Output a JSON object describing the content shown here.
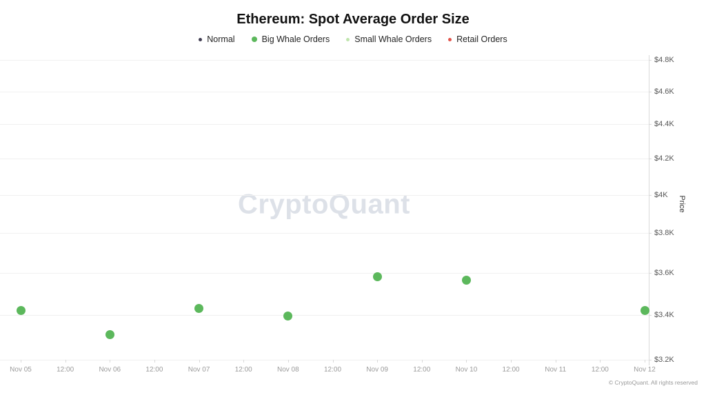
{
  "title": "Ethereum: Spot Average Order Size",
  "watermark": "CryptoQuant",
  "copyright": "© CryptoQuant. All rights reserved",
  "legend": [
    {
      "label": "Normal",
      "color": "#413d52"
    },
    {
      "label": "Big Whale Orders",
      "color": "#5cb85c"
    },
    {
      "label": "Small Whale Orders",
      "color": "#bfe5ad"
    },
    {
      "label": "Retail Orders",
      "color": "#e2534a"
    }
  ],
  "chart_data": {
    "type": "scatter",
    "title": "Ethereum: Spot Average Order Size",
    "xlabel": "",
    "ylabel": "Price",
    "y_scale": "log",
    "ylim": [
      3200,
      4800
    ],
    "grid": true,
    "legend_position": "top",
    "y_ticks": [
      {
        "value": 3200,
        "label": "$3.2K"
      },
      {
        "value": 3400,
        "label": "$3.4K"
      },
      {
        "value": 3600,
        "label": "$3.6K"
      },
      {
        "value": 3800,
        "label": "$3.8K"
      },
      {
        "value": 4000,
        "label": "$4K"
      },
      {
        "value": 4200,
        "label": "$4.2K"
      },
      {
        "value": 4400,
        "label": "$4.4K"
      },
      {
        "value": 4600,
        "label": "$4.6K"
      },
      {
        "value": 4800,
        "label": "$4.8K"
      }
    ],
    "x_ticks": [
      {
        "day": 0,
        "label": "Nov 05"
      },
      {
        "day": 0.5,
        "label": "12:00"
      },
      {
        "day": 1,
        "label": "Nov 06"
      },
      {
        "day": 1.5,
        "label": "12:00"
      },
      {
        "day": 2,
        "label": "Nov 07"
      },
      {
        "day": 2.5,
        "label": "12:00"
      },
      {
        "day": 3,
        "label": "Nov 08"
      },
      {
        "day": 3.5,
        "label": "12:00"
      },
      {
        "day": 4,
        "label": "Nov 09"
      },
      {
        "day": 4.5,
        "label": "12:00"
      },
      {
        "day": 5,
        "label": "Nov 10"
      },
      {
        "day": 5.5,
        "label": "12:00"
      },
      {
        "day": 6,
        "label": "Nov 11"
      },
      {
        "day": 6.5,
        "label": "12:00"
      },
      {
        "day": 7,
        "label": "Nov 12"
      }
    ],
    "xlim_days": [
      0,
      7
    ],
    "series": [
      {
        "name": "Big Whale Orders",
        "color": "#5cb85c",
        "points": [
          {
            "date": "Nov 05",
            "day": 0,
            "price": 3420
          },
          {
            "date": "Nov 06",
            "day": 1,
            "price": 3310
          },
          {
            "date": "Nov 07",
            "day": 2,
            "price": 3430
          },
          {
            "date": "Nov 08",
            "day": 3,
            "price": 3395
          },
          {
            "date": "Nov 09",
            "day": 4,
            "price": 3580
          },
          {
            "date": "Nov 10",
            "day": 5,
            "price": 3565
          },
          {
            "date": "Nov 12",
            "day": 7,
            "price": 3420
          }
        ]
      }
    ]
  }
}
